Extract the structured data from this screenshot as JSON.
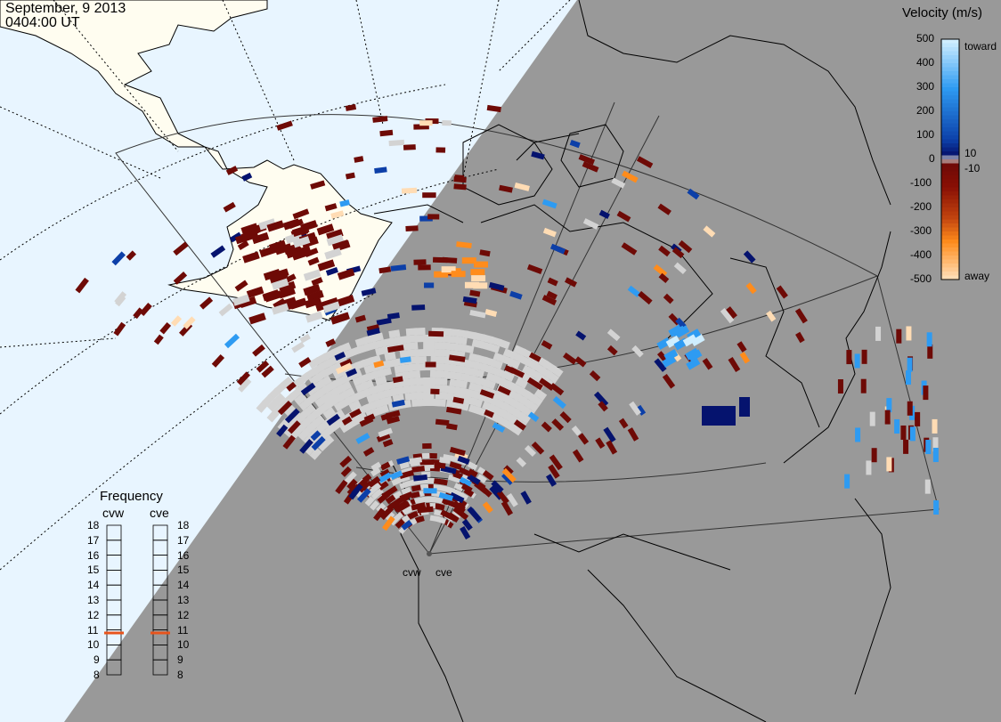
{
  "header": {
    "date": "September, 9 2013",
    "time": "0404:00 UT"
  },
  "velocity_scale": {
    "title": "Velocity (m/s)",
    "ticks": [
      "500",
      "400",
      "300",
      "200",
      "100",
      "0",
      "-100",
      "-200",
      "-300",
      "-400",
      "-500"
    ],
    "toward_label": "toward",
    "away_label": "away",
    "inner_pos": "10",
    "inner_neg": "-10",
    "colors": {
      "toward_500": "#cfeeff",
      "toward_300": "#2e9bf2",
      "toward_100": "#0c3fa8",
      "toward_10": "#05136e",
      "away_10": "#6e0a06",
      "away_100": "#8a1005",
      "away_200": "#c2450f",
      "away_300": "#ff8c1c",
      "away_500": "#ffdcb4",
      "ground_scatter": "#d3d3d3"
    }
  },
  "frequency": {
    "title": "Frequency",
    "radars": [
      {
        "name": "cvw",
        "value_mhz": 10.8
      },
      {
        "name": "cve",
        "value_mhz": 10.8
      }
    ],
    "ticks": [
      "18",
      "17",
      "16",
      "15",
      "14",
      "13",
      "12",
      "11",
      "10",
      "9",
      "8"
    ],
    "marker_color": "#e8541c"
  },
  "map": {
    "site_labels": [
      "cvw",
      "cve"
    ],
    "night_color": "#999999",
    "ocean_color": "#e8f5ff",
    "land_color": "#fffdf0"
  }
}
